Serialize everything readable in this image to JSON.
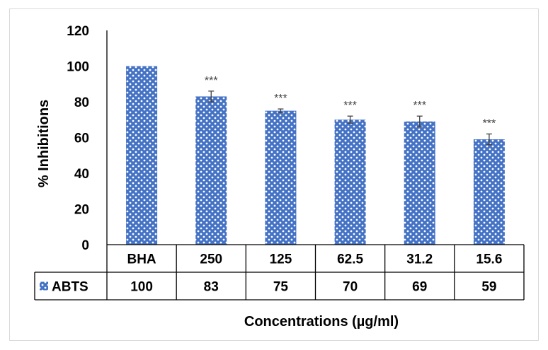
{
  "chart_data": {
    "type": "bar",
    "title": "",
    "xlabel": "Concentrations (µg/ml)",
    "ylabel": "% Inhibitions",
    "ylim": [
      0,
      120
    ],
    "yticks": [
      0,
      20,
      40,
      60,
      80,
      100,
      120
    ],
    "categories": [
      "BHA",
      "250",
      "125",
      "62.5",
      "31.2",
      "15.6"
    ],
    "series": [
      {
        "name": "ABTS",
        "values": [
          100,
          83,
          75,
          70,
          69,
          59
        ],
        "error": [
          0,
          3,
          1,
          2,
          3,
          3
        ],
        "color": "#4472c4"
      }
    ],
    "annotations": [
      "",
      "***",
      "***",
      "***",
      "***",
      "***"
    ],
    "data_table": true,
    "grid": false
  }
}
